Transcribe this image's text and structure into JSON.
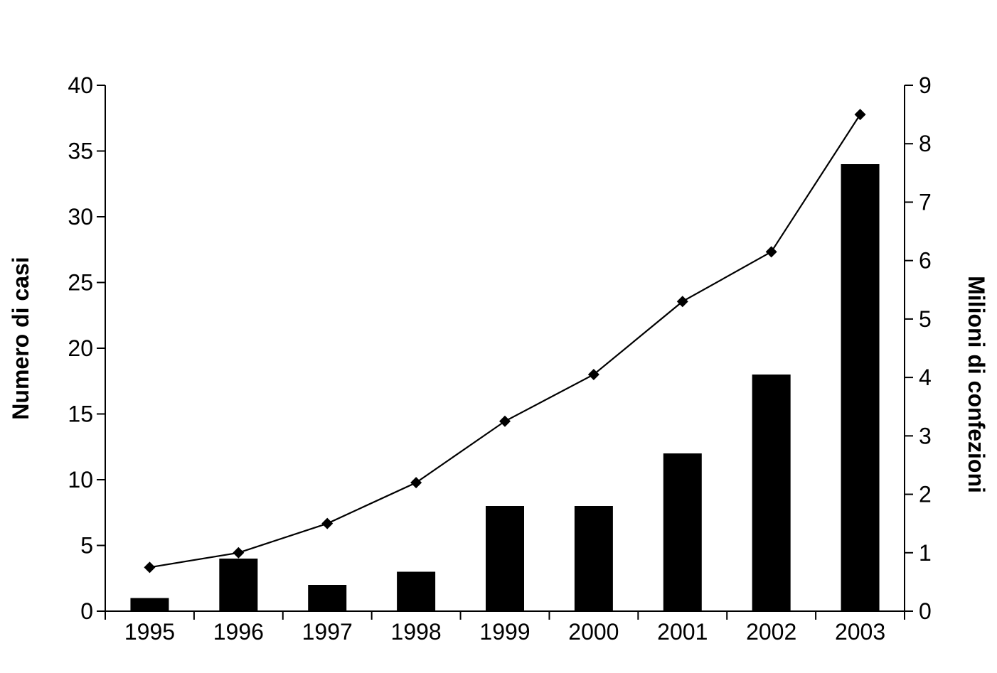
{
  "chart_data": {
    "type": "bar",
    "title": "",
    "categories": [
      "1995",
      "1996",
      "1997",
      "1998",
      "1999",
      "2000",
      "2001",
      "2002",
      "2003"
    ],
    "series": [
      {
        "type": "bar",
        "axis": "left",
        "values": [
          1,
          4,
          2,
          3,
          8,
          8,
          12,
          18,
          34
        ]
      },
      {
        "type": "line",
        "axis": "right",
        "marker": "diamond",
        "values": [
          0.75,
          1.0,
          1.5,
          2.2,
          3.25,
          4.05,
          5.3,
          6.15,
          8.5
        ]
      }
    ],
    "xlabel": "",
    "ylabel": "Numero di casi",
    "ylabel_right": "Milioni di confezioni",
    "ylim": [
      0,
      40
    ],
    "ylim_right": [
      0,
      9
    ],
    "yticks": [
      "0",
      "5",
      "10",
      "15",
      "20",
      "25",
      "30",
      "35",
      "40"
    ],
    "yticks_right": [
      "0",
      "1",
      "2",
      "3",
      "4",
      "5",
      "6",
      "7",
      "8",
      "9"
    ],
    "grid": false,
    "legend": "none",
    "colors": {
      "bar": "#000000",
      "line": "#000000",
      "marker": "#000000",
      "axis": "#000000"
    }
  }
}
